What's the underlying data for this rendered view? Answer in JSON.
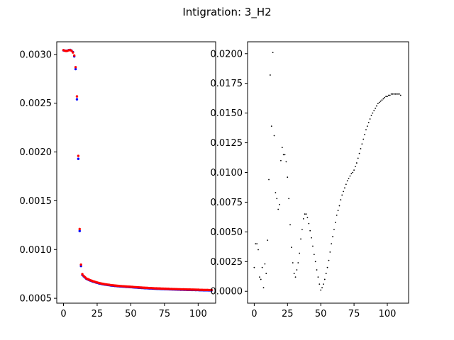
{
  "figure": {
    "title": "Intigration: 3_H2"
  },
  "chart_data": [
    {
      "type": "scatter",
      "panel": "left",
      "xlim": [
        -5,
        113
      ],
      "ylim": [
        0.00045,
        0.00313
      ],
      "xticks": [
        0,
        25,
        50,
        75,
        100
      ],
      "xtick_labels": [
        "0",
        "25",
        "50",
        "75",
        "100"
      ],
      "yticks": [
        0.0005,
        0.001,
        0.0015,
        0.002,
        0.0025,
        0.003
      ],
      "ytick_labels": [
        "0.0005",
        "0.0010",
        "0.0015",
        "0.0020",
        "0.0025",
        "0.0030"
      ],
      "grid": false,
      "series": [
        {
          "color": "#0000ff",
          "x": [
            0,
            1,
            2,
            3,
            4,
            5,
            6,
            7,
            8,
            9,
            10,
            11,
            12,
            13,
            14,
            15,
            16,
            17,
            18,
            19,
            20,
            21,
            22,
            23,
            24,
            25,
            26,
            27,
            28,
            29,
            30,
            31,
            32,
            33,
            34,
            35,
            36,
            37,
            38,
            39,
            40,
            41,
            42,
            43,
            44,
            45,
            46,
            47,
            48,
            49,
            50,
            51,
            52,
            53,
            54,
            55,
            56,
            57,
            58,
            59,
            60,
            61,
            62,
            63,
            64,
            65,
            66,
            67,
            68,
            69,
            70,
            71,
            72,
            73,
            74,
            75,
            76,
            77,
            78,
            79,
            80,
            81,
            82,
            83,
            84,
            85,
            86,
            87,
            88,
            89,
            90,
            91,
            92,
            93,
            94,
            95,
            96,
            97,
            98,
            99,
            100,
            101,
            102,
            103,
            104,
            105,
            106,
            107,
            108,
            109,
            110
          ],
          "y": [
            0.003042,
            0.00304,
            0.003038,
            0.00304,
            0.003045,
            0.003047,
            0.00304,
            0.003025,
            0.00298,
            0.00285,
            0.00254,
            0.00193,
            0.00119,
            0.00083,
            0.00074,
            0.000725,
            0.000712,
            0.0007,
            0.000693,
            0.000687,
            0.000681,
            0.000676,
            0.000671,
            0.000667,
            0.000662,
            0.000658,
            0.000654,
            0.000651,
            0.000648,
            0.000645,
            0.000642,
            0.00064,
            0.000638,
            0.000636,
            0.000634,
            0.000632,
            0.00063,
            0.000629,
            0.000627,
            0.000626,
            0.000624,
            0.000623,
            0.000622,
            0.000621,
            0.00062,
            0.000619,
            0.000618,
            0.000617,
            0.000616,
            0.000615,
            0.000614,
            0.000613,
            0.000612,
            0.000611,
            0.00061,
            0.000609,
            0.000608,
            0.000607,
            0.000606,
            0.000605,
            0.000604,
            0.000603,
            0.000603,
            0.000602,
            0.000601,
            0.000601,
            0.0006,
            0.000599,
            0.000598,
            0.000598,
            0.000597,
            0.000597,
            0.000596,
            0.000595,
            0.000595,
            0.000594,
            0.000594,
            0.000593,
            0.000593,
            0.000592,
            0.000592,
            0.000591,
            0.000591,
            0.00059,
            0.00059,
            0.000589,
            0.000589,
            0.000588,
            0.000588,
            0.000588,
            0.000587,
            0.000587,
            0.000586,
            0.000586,
            0.000586,
            0.000585,
            0.000585,
            0.000585,
            0.000584,
            0.000584,
            0.000584,
            0.000583,
            0.000583,
            0.000583,
            0.000582,
            0.000582,
            0.000582,
            0.000582,
            0.000581,
            0.000581,
            0.000581
          ]
        },
        {
          "color": "#ff0000",
          "x": [
            0,
            1,
            2,
            3,
            4,
            5,
            6,
            7,
            8,
            9,
            10,
            11,
            12,
            13,
            14,
            15,
            16,
            17,
            18,
            19,
            20,
            21,
            22,
            23,
            24,
            25,
            26,
            27,
            28,
            29,
            30,
            31,
            32,
            33,
            34,
            35,
            36,
            37,
            38,
            39,
            40,
            41,
            42,
            43,
            44,
            45,
            46,
            47,
            48,
            49,
            50,
            51,
            52,
            53,
            54,
            55,
            56,
            57,
            58,
            59,
            60,
            61,
            62,
            63,
            64,
            65,
            66,
            67,
            68,
            69,
            70,
            71,
            72,
            73,
            74,
            75,
            76,
            77,
            78,
            79,
            80,
            81,
            82,
            83,
            84,
            85,
            86,
            87,
            88,
            89,
            90,
            91,
            92,
            93,
            94,
            95,
            96,
            97,
            98,
            99,
            100,
            101,
            102,
            103,
            104,
            105,
            106,
            107,
            108,
            109,
            110
          ],
          "y": [
            0.003044,
            0.003038,
            0.003036,
            0.003038,
            0.003043,
            0.003045,
            0.003038,
            0.00302,
            0.00299,
            0.00287,
            0.00257,
            0.00196,
            0.00121,
            0.000845,
            0.000748,
            0.00073,
            0.000716,
            0.000704,
            0.000697,
            0.000691,
            0.000685,
            0.00068,
            0.000675,
            0.000671,
            0.000666,
            0.000662,
            0.000658,
            0.000655,
            0.000652,
            0.000649,
            0.000646,
            0.000644,
            0.000642,
            0.00064,
            0.000638,
            0.000636,
            0.000634,
            0.000633,
            0.000631,
            0.00063,
            0.000628,
            0.000627,
            0.000626,
            0.000625,
            0.000624,
            0.000623,
            0.000622,
            0.000621,
            0.00062,
            0.000619,
            0.000618,
            0.000617,
            0.000616,
            0.000615,
            0.000614,
            0.000613,
            0.000612,
            0.000611,
            0.00061,
            0.000609,
            0.000608,
            0.000607,
            0.000607,
            0.000606,
            0.000605,
            0.000605,
            0.000604,
            0.000603,
            0.000602,
            0.000602,
            0.000601,
            0.000601,
            0.0006,
            0.000599,
            0.000599,
            0.000598,
            0.000598,
            0.000597,
            0.000597,
            0.000596,
            0.000596,
            0.000595,
            0.000595,
            0.000594,
            0.000594,
            0.000593,
            0.000593,
            0.000592,
            0.000592,
            0.000592,
            0.000591,
            0.000591,
            0.00059,
            0.00059,
            0.00059,
            0.000589,
            0.000589,
            0.000589,
            0.000588,
            0.000588,
            0.000588,
            0.000587,
            0.000587,
            0.000587,
            0.000586,
            0.000586,
            0.000586,
            0.000586,
            0.000585,
            0.000585,
            0.000585
          ]
        }
      ]
    },
    {
      "type": "scatter",
      "panel": "right",
      "xlim": [
        -5,
        116
      ],
      "ylim": [
        -0.001,
        0.021
      ],
      "xticks": [
        0,
        25,
        50,
        75,
        100
      ],
      "xtick_labels": [
        "0",
        "25",
        "50",
        "75",
        "100"
      ],
      "yticks": [
        0.0,
        0.0025,
        0.005,
        0.0075,
        0.01,
        0.0125,
        0.015,
        0.0175,
        0.02
      ],
      "ytick_labels": [
        "0.0000",
        "0.0025",
        "0.0050",
        "0.0075",
        "0.0100",
        "0.0125",
        "0.0150",
        "0.0175",
        "0.0200"
      ],
      "grid": false,
      "series": [
        {
          "color": "#000000",
          "x": [
            0,
            1,
            2,
            3,
            4,
            5,
            6,
            7,
            8,
            9,
            10,
            11,
            12,
            13,
            14,
            15,
            16,
            17,
            18,
            19,
            20,
            21,
            22,
            23,
            24,
            25,
            26,
            27,
            28,
            29,
            30,
            31,
            32,
            33,
            34,
            35,
            36,
            37,
            38,
            39,
            40,
            41,
            42,
            43,
            44,
            45,
            46,
            47,
            48,
            49,
            50,
            51,
            52,
            53,
            54,
            55,
            56,
            57,
            58,
            59,
            60,
            61,
            62,
            63,
            64,
            65,
            66,
            67,
            68,
            69,
            70,
            71,
            72,
            73,
            74,
            75,
            76,
            77,
            78,
            79,
            80,
            81,
            82,
            83,
            84,
            85,
            86,
            87,
            88,
            89,
            90,
            91,
            92,
            93,
            94,
            95,
            96,
            97,
            98,
            99,
            100,
            101,
            102,
            103,
            104,
            105,
            106,
            107,
            108,
            109,
            110
          ],
          "y": [
            0.002,
            0.004,
            0.004,
            0.0035,
            0.0012,
            0.001,
            0.002,
            0.0003,
            0.0023,
            0.0015,
            0.0043,
            0.0094,
            0.0182,
            0.0139,
            0.0201,
            0.0131,
            0.0083,
            0.0078,
            0.0069,
            0.0073,
            0.011,
            0.0121,
            0.0115,
            0.0115,
            0.0109,
            0.0096,
            0.0078,
            0.0056,
            0.0037,
            0.0024,
            0.0015,
            0.0012,
            0.0018,
            0.0024,
            0.0032,
            0.0044,
            0.0052,
            0.0061,
            0.0065,
            0.0065,
            0.0062,
            0.0057,
            0.0051,
            0.0045,
            0.0038,
            0.0031,
            0.0025,
            0.0018,
            0.0012,
            0.0006,
            0.0001,
            0.0003,
            0.0006,
            0.001,
            0.0015,
            0.002,
            0.0026,
            0.0033,
            0.004,
            0.0046,
            0.0052,
            0.0058,
            0.0064,
            0.0068,
            0.0072,
            0.0077,
            0.0081,
            0.0084,
            0.0087,
            0.009,
            0.0093,
            0.0095,
            0.0097,
            0.0099,
            0.01,
            0.0102,
            0.0105,
            0.0108,
            0.0112,
            0.0116,
            0.012,
            0.0124,
            0.0128,
            0.0132,
            0.0136,
            0.0139,
            0.0142,
            0.0145,
            0.0148,
            0.015,
            0.0152,
            0.0154,
            0.0156,
            0.0158,
            0.0159,
            0.016,
            0.0161,
            0.0162,
            0.0163,
            0.0164,
            0.0164,
            0.0165,
            0.0165,
            0.0166,
            0.0166,
            0.0166,
            0.0166,
            0.0166,
            0.0166,
            0.0166,
            0.0165
          ]
        }
      ]
    }
  ]
}
